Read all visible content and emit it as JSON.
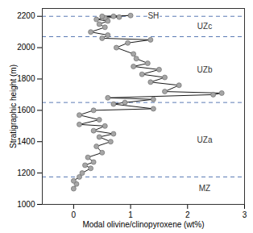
{
  "chart_data": {
    "type": "line",
    "marker": "circle",
    "color": "#1a1a1a",
    "xlabel": "Modal olivine/clinopyroxene (wt%)",
    "ylabel": "Stratigraphic height (m)",
    "xlim": [
      -0.55,
      3
    ],
    "ylim": [
      1000,
      2250
    ],
    "xticks": [
      0,
      1,
      2,
      3
    ],
    "yticks": [
      1000,
      1200,
      1400,
      1600,
      1800,
      2000,
      2200
    ],
    "x": [
      0,
      0.05,
      0,
      0.1,
      0.15,
      0.3,
      0.2,
      0.35,
      0.25,
      0.5,
      0.4,
      0.65,
      0.45,
      0.7,
      0.35,
      0.55,
      0.1,
      0.45,
      0.1,
      0.35,
      1.4,
      0.7,
      0.9,
      1.4,
      0.6,
      2.45,
      2.6,
      1.6,
      1.85,
      1.35,
      1.6,
      1.2,
      1.5,
      1.05,
      1.3,
      1.1,
      1.05,
      0.75,
      0.95,
      1.35,
      0.5,
      0.6,
      0.3,
      0.55,
      0.45,
      0.6,
      0.4,
      0.55,
      0.8,
      0.5,
      1.0,
      0.7
    ],
    "values": [
      1100,
      1130,
      1150,
      1175,
      1200,
      1230,
      1250,
      1270,
      1300,
      1330,
      1370,
      1400,
      1430,
      1450,
      1470,
      1500,
      1510,
      1540,
      1570,
      1600,
      1610,
      1640,
      1650,
      1670,
      1680,
      1700,
      1710,
      1720,
      1760,
      1780,
      1810,
      1830,
      1860,
      1880,
      1900,
      1930,
      1960,
      2000,
      2030,
      2050,
      2060,
      2080,
      2100,
      2130,
      2150,
      2170,
      2180,
      2190,
      2195,
      2200,
      2205,
      2200
    ],
    "boundaries": [
      1175,
      1650,
      2070,
      2200
    ],
    "boundary_color": "#5b7bb5",
    "boundary_line_style": "dashed",
    "annotations": [
      {
        "text": "SH",
        "x": 1.4,
        "y": 2200
      },
      {
        "text": "UZc",
        "x": 2.3,
        "y": 2135
      },
      {
        "text": "UZb",
        "x": 2.3,
        "y": 1860
      },
      {
        "text": "UZa",
        "x": 2.3,
        "y": 1410
      },
      {
        "text": "MZ",
        "x": 2.3,
        "y": 1100
      }
    ]
  }
}
